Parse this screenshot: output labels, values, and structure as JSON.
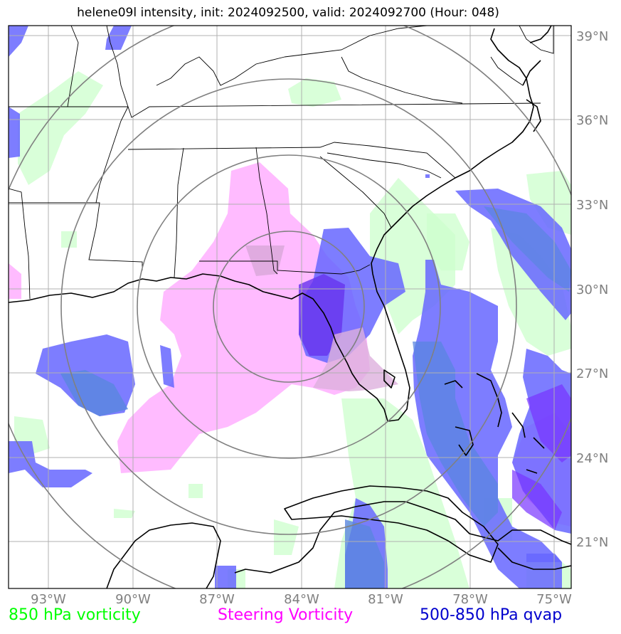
{
  "title": "helene09l intensity, init: 2024092500, valid: 2024092700 (Hour: 048)",
  "lat_labels": [
    "39°N",
    "36°N",
    "33°N",
    "30°N",
    "27°N",
    "24°N",
    "21°N"
  ],
  "lon_labels": [
    "93°W",
    "90°W",
    "87°W",
    "84°W",
    "81°W",
    "78°W",
    "75°W"
  ],
  "legend": {
    "vorticity": {
      "label": "850 hPa vorticity",
      "color": "#00ff00"
    },
    "steering": {
      "label": "Steering Vorticity",
      "color": "#ff00ff"
    },
    "qvap": {
      "label": "500-850 hPa qvap",
      "color": "#0000cd"
    }
  },
  "colors": {
    "vorticity_fill": "#ccffcc",
    "steering_fill": "#ffaaff",
    "qvap_fill": "#6666ff",
    "range_rings": "#808080",
    "grid": "#b0b0b0"
  }
}
